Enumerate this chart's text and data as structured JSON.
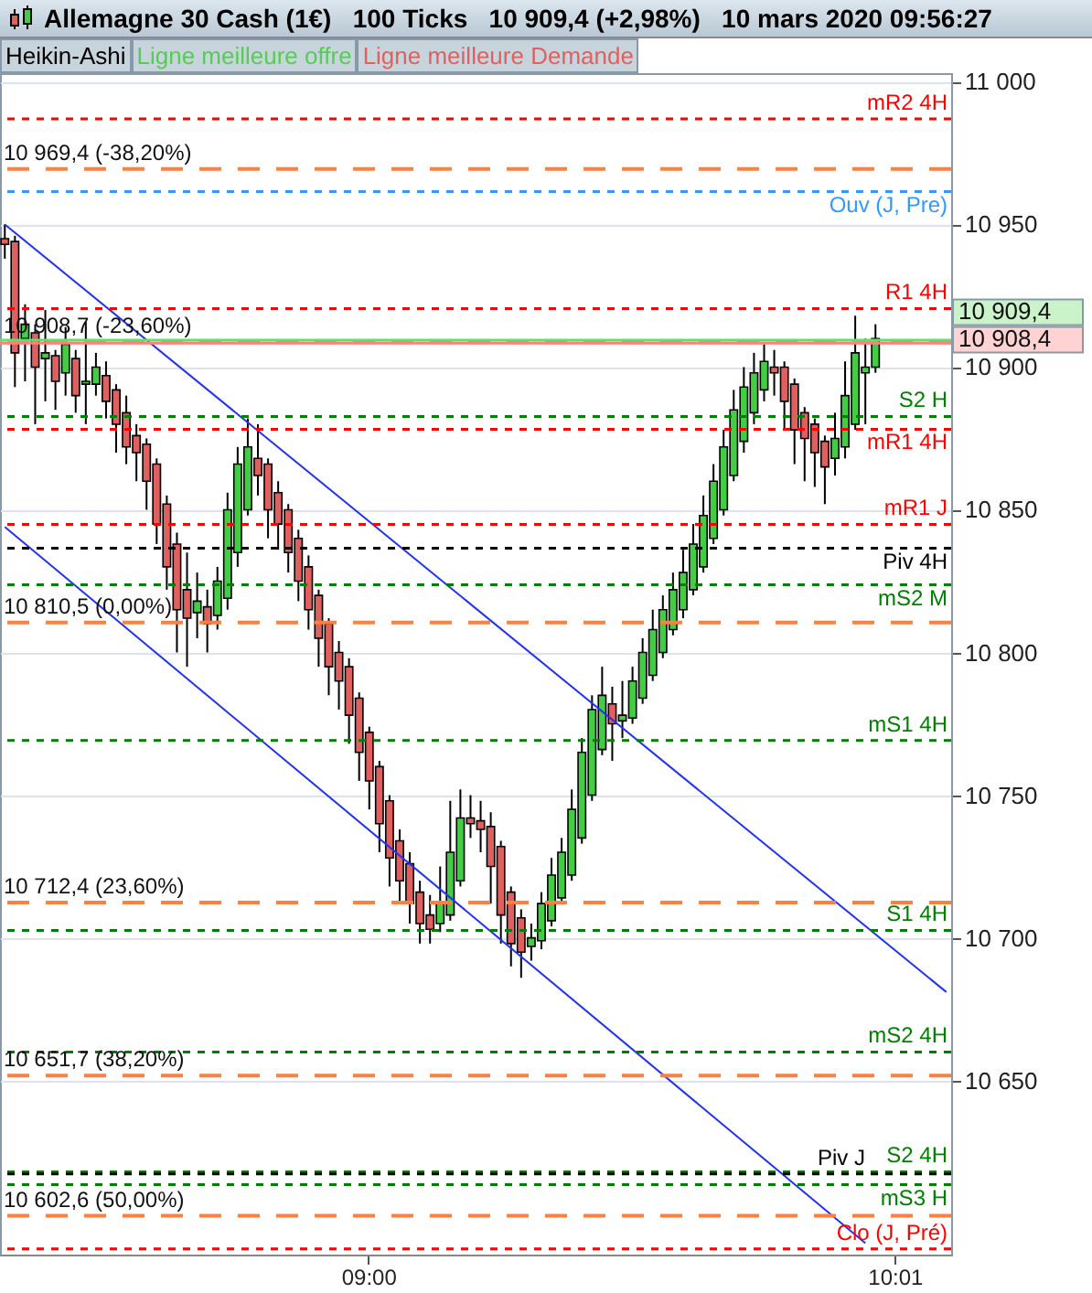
{
  "chart_data": {
    "type": "candlestick",
    "title": "Allemagne 30 Cash (1€)   100 Ticks   10 909,4 (+2,98%)   10 mars 2020 09:56:27",
    "annotations": [
      "Heikin-Ashi",
      "Ligne meilleure offre",
      "Ligne meilleure Demande"
    ],
    "categories": [
      null,
      null,
      null,
      null,
      null,
      null,
      null,
      null,
      null,
      null,
      null,
      null,
      null,
      null,
      null,
      null,
      null,
      null,
      null,
      null,
      null,
      null,
      null,
      null,
      null,
      null,
      null,
      null,
      null,
      null,
      null,
      null,
      null,
      null,
      null,
      null,
      "09:00",
      null,
      null,
      null,
      null,
      null,
      null,
      null,
      null,
      null,
      null,
      null,
      null,
      null,
      null,
      null,
      null,
      null,
      null,
      null,
      null,
      null,
      null,
      null,
      null,
      null,
      null,
      null,
      null,
      null,
      null,
      null,
      null,
      null,
      null,
      null,
      null,
      null,
      null,
      null,
      null,
      null,
      null,
      null,
      null,
      null,
      null,
      null,
      null,
      null,
      null,
      null,
      "10:01",
      null,
      null,
      null,
      null,
      null
    ],
    "ohlc": [
      [
        10945,
        10950,
        10938,
        10943
      ],
      [
        10944,
        10946,
        10893,
        10905
      ],
      [
        10910,
        10922,
        10895,
        10915
      ],
      [
        10912,
        10915,
        10880,
        10900
      ],
      [
        10903,
        10920,
        10888,
        10905
      ],
      [
        10904,
        10906,
        10885,
        10895
      ],
      [
        10898,
        10914,
        10890,
        10908
      ],
      [
        10903,
        10906,
        10884,
        10890
      ],
      [
        10894,
        10916,
        10880,
        10895
      ],
      [
        10894,
        10905,
        10890,
        10900
      ],
      [
        10897,
        10902,
        10882,
        10888
      ],
      [
        10892,
        10894,
        10870,
        10880
      ],
      [
        10884,
        10890,
        10866,
        10872
      ],
      [
        10876,
        10880,
        10860,
        10870
      ],
      [
        10873,
        10875,
        10850,
        10860
      ],
      [
        10866,
        10868,
        10838,
        10845
      ],
      [
        10852,
        10855,
        10822,
        10830
      ],
      [
        10838,
        10842,
        10800,
        10815
      ],
      [
        10822,
        10835,
        10795,
        10812
      ],
      [
        10814,
        10828,
        10805,
        10818
      ],
      [
        10816,
        10822,
        10800,
        10810
      ],
      [
        10813,
        10830,
        10808,
        10825
      ],
      [
        10819,
        10856,
        10815,
        10850
      ],
      [
        10835,
        10872,
        10830,
        10866
      ],
      [
        10850,
        10882,
        10848,
        10872
      ],
      [
        10868,
        10880,
        10855,
        10862
      ],
      [
        10866,
        10868,
        10840,
        10850
      ],
      [
        10856,
        10860,
        10836,
        10845
      ],
      [
        10850,
        10852,
        10828,
        10835
      ],
      [
        10840,
        10843,
        10818,
        10825
      ],
      [
        10830,
        10834,
        10808,
        10815
      ],
      [
        10820,
        10822,
        10795,
        10805
      ],
      [
        10810,
        10812,
        10785,
        10795
      ],
      [
        10800,
        10804,
        10780,
        10790
      ],
      [
        10795,
        10798,
        10768,
        10778
      ],
      [
        10784,
        10786,
        10755,
        10765
      ],
      [
        10772,
        10774,
        10745,
        10755
      ],
      [
        10760,
        10762,
        10730,
        10740
      ],
      [
        10748,
        10750,
        10718,
        10728
      ],
      [
        10734,
        10738,
        10712,
        10720
      ],
      [
        10726,
        10730,
        10705,
        10712
      ],
      [
        10716,
        10720,
        10698,
        10705
      ],
      [
        10708,
        10715,
        10698,
        10703
      ],
      [
        10705,
        10725,
        10702,
        10712
      ],
      [
        10708,
        10748,
        10706,
        10730
      ],
      [
        10720,
        10752,
        10718,
        10742
      ],
      [
        10742,
        10750,
        10735,
        10740
      ],
      [
        10741,
        10748,
        10730,
        10738
      ],
      [
        10739,
        10744,
        10712,
        10725
      ],
      [
        10732,
        10734,
        10698,
        10708
      ],
      [
        10716,
        10718,
        10690,
        10698
      ],
      [
        10707,
        10710,
        10686,
        10695
      ],
      [
        10697,
        10705,
        10692,
        10700
      ],
      [
        10699,
        10716,
        10696,
        10712
      ],
      [
        10706,
        10728,
        10704,
        10722
      ],
      [
        10714,
        10735,
        10712,
        10730
      ],
      [
        10722,
        10752,
        10720,
        10745
      ],
      [
        10735,
        10770,
        10733,
        10765
      ],
      [
        10750,
        10785,
        10748,
        10780
      ],
      [
        10766,
        10795,
        10764,
        10785
      ],
      [
        10782,
        10788,
        10762,
        10775
      ],
      [
        10776,
        10790,
        10770,
        10778
      ],
      [
        10777,
        10795,
        10775,
        10790
      ],
      [
        10784,
        10805,
        10782,
        10800
      ],
      [
        10792,
        10815,
        10790,
        10808
      ],
      [
        10800,
        10820,
        10798,
        10815
      ],
      [
        10808,
        10828,
        10806,
        10822
      ],
      [
        10815,
        10836,
        10812,
        10828
      ],
      [
        10822,
        10845,
        10820,
        10838
      ],
      [
        10830,
        10855,
        10828,
        10848
      ],
      [
        10840,
        10866,
        10838,
        10860
      ],
      [
        10850,
        10878,
        10848,
        10872
      ],
      [
        10862,
        10892,
        10860,
        10885
      ],
      [
        10874,
        10900,
        10870,
        10893
      ],
      [
        10884,
        10905,
        10880,
        10898
      ],
      [
        10892,
        10908,
        10888,
        10902
      ],
      [
        10900,
        10906,
        10890,
        10898
      ],
      [
        10900,
        10902,
        10878,
        10888
      ],
      [
        10894,
        10896,
        10866,
        10878
      ],
      [
        10884,
        10886,
        10860,
        10875
      ],
      [
        10880,
        10882,
        10858,
        10870
      ],
      [
        10874,
        10876,
        10852,
        10865
      ],
      [
        10868,
        10884,
        10862,
        10875
      ],
      [
        10872,
        10902,
        10868,
        10890
      ],
      [
        10880,
        10918,
        10878,
        10905
      ],
      [
        10898,
        10910,
        10880,
        10900
      ],
      [
        10900,
        10915,
        10898,
        10910
      ],
      null,
      null,
      null,
      null,
      null,
      null,
      null
    ],
    "series": [
      {
        "type": "line",
        "color": "#2233ee",
        "values": [
          10950,
          null,
          null,
          null,
          null,
          null,
          null,
          null,
          null,
          null,
          null,
          null,
          null,
          null,
          null,
          null,
          null,
          null,
          null,
          null,
          null,
          null,
          null,
          null,
          null,
          null,
          null,
          null,
          null,
          null,
          null,
          null,
          null,
          null,
          null,
          null,
          null,
          null,
          null,
          null,
          null,
          null,
          null,
          null,
          null,
          null,
          null,
          null,
          null,
          null,
          null,
          null,
          null,
          null,
          null,
          null,
          null,
          null,
          null,
          null,
          null,
          null,
          null,
          null,
          null,
          null,
          null,
          null,
          null,
          null,
          null,
          null,
          null,
          null,
          null,
          null,
          null,
          null,
          null,
          null,
          null,
          null,
          null,
          null,
          null,
          null,
          null,
          null,
          null,
          null,
          null,
          null,
          null,
          10681
        ]
      },
      {
        "type": "line",
        "color": "#2233ee",
        "values": [
          10844,
          null,
          null,
          null,
          null,
          null,
          null,
          null,
          null,
          null,
          null,
          null,
          null,
          null,
          null,
          null,
          null,
          null,
          null,
          null,
          null,
          null,
          null,
          null,
          null,
          null,
          null,
          null,
          null,
          null,
          null,
          null,
          null,
          null,
          null,
          null,
          null,
          null,
          null,
          null,
          null,
          null,
          null,
          null,
          null,
          null,
          null,
          null,
          null,
          null,
          null,
          null,
          null,
          null,
          null,
          null,
          null,
          null,
          null,
          null,
          null,
          null,
          null,
          null,
          null,
          null,
          null,
          null,
          null,
          null,
          null,
          null,
          null,
          null,
          null,
          null,
          null,
          null,
          null,
          null,
          null,
          null,
          null,
          null,
          null,
          10593,
          null,
          null,
          null,
          null,
          null,
          null,
          null,
          null
        ]
      }
    ],
    "ylim": [
      10589,
      11003
    ],
    "yticks": [
      {
        "value": 10650,
        "label": "10 650"
      },
      {
        "value": 10700,
        "label": "10 700"
      },
      {
        "value": 10750,
        "label": "10 750"
      },
      {
        "value": 10800,
        "label": "10 800"
      },
      {
        "value": 10850,
        "label": "10 850"
      },
      {
        "value": 10900,
        "label": "10 900"
      },
      {
        "value": 10950,
        "label": "10 950"
      },
      {
        "value": 11000,
        "label": "11 000"
      }
    ],
    "grid": "y",
    "ref_lines": [
      {
        "axis": "y",
        "value": 10987,
        "label": "mR2 4H",
        "color": "#ff0000",
        "line_style": "dotted"
      },
      {
        "axis": "y",
        "value": 10969.4,
        "label": "10 969,4 (-38,20%)",
        "color": "#ff7f3f",
        "line_style": "dashed"
      },
      {
        "axis": "y",
        "value": 10961.5,
        "label": "Ouv (J, Pre)",
        "color": "#3399ff",
        "line_style": "dotted"
      },
      {
        "axis": "y",
        "value": 10920.5,
        "label": "R1 4H",
        "color": "#ff0000",
        "line_style": "dotted"
      },
      {
        "axis": "y",
        "value": 10908.7,
        "label": "10 908,7 (-23,60%)",
        "color": "#ff7f3f",
        "line_style": "dashed"
      },
      {
        "axis": "y",
        "value": 10909.4,
        "label": "10 909,4",
        "color": "#66dd66",
        "line_style": "solid"
      },
      {
        "axis": "y",
        "value": 10908.4,
        "label": "10 908,4",
        "color": "#ff8080",
        "line_style": "solid"
      },
      {
        "axis": "y",
        "value": 10882.7,
        "label": "S2 H",
        "color": "#008000",
        "line_style": "dotted"
      },
      {
        "axis": "y",
        "value": 10878.2,
        "label": "mR1 4H",
        "color": "#ff0000",
        "line_style": "dotted"
      },
      {
        "axis": "y",
        "value": 10844.9,
        "label": "mR1 J",
        "color": "#ff0000",
        "line_style": "dotted"
      },
      {
        "axis": "y",
        "value": 10836.5,
        "label": "Piv 4H",
        "color": "#000000",
        "line_style": "dotted"
      },
      {
        "axis": "y",
        "value": 10823.7,
        "label": "mS2 M",
        "color": "#008000",
        "line_style": "dotted"
      },
      {
        "axis": "y",
        "value": 10810.5,
        "label": "10 810,5 (0,00%)",
        "color": "#ff7f3f",
        "line_style": "dashed"
      },
      {
        "axis": "y",
        "value": 10769.2,
        "label": "mS1 4H",
        "color": "#008000",
        "line_style": "dotted"
      },
      {
        "axis": "y",
        "value": 10712.4,
        "label": "10 712,4 (23,60%)",
        "color": "#ff7f3f",
        "line_style": "dashed"
      },
      {
        "axis": "y",
        "value": 10702.6,
        "label": "S1 4H",
        "color": "#008000",
        "line_style": "dotted"
      },
      {
        "axis": "y",
        "value": 10660,
        "label": "mS2 4H",
        "color": "#008000",
        "line_style": "dotted"
      },
      {
        "axis": "y",
        "value": 10651.7,
        "label": "10 651,7 (38,20%)",
        "color": "#ff7f3f",
        "line_style": "dashed"
      },
      {
        "axis": "y",
        "value": 10618,
        "label": "S2 4H",
        "color": "#008000",
        "line_style": "dotted"
      },
      {
        "axis": "y",
        "value": 10617.3,
        "label": "Piv J",
        "color": "#000000",
        "line_style": "dotted"
      },
      {
        "axis": "y",
        "value": 10613.5,
        "label": "mS3 H",
        "color": "#008000",
        "line_style": "dotted"
      },
      {
        "axis": "y",
        "value": 10602.6,
        "label": "10 602,6 (50,00%)",
        "color": "#ff7f3f",
        "line_style": "dashed"
      },
      {
        "axis": "y",
        "value": 10591,
        "label": "Clo (J, Pré)",
        "color": "#ff0000",
        "line_style": "dotted"
      }
    ]
  }
}
